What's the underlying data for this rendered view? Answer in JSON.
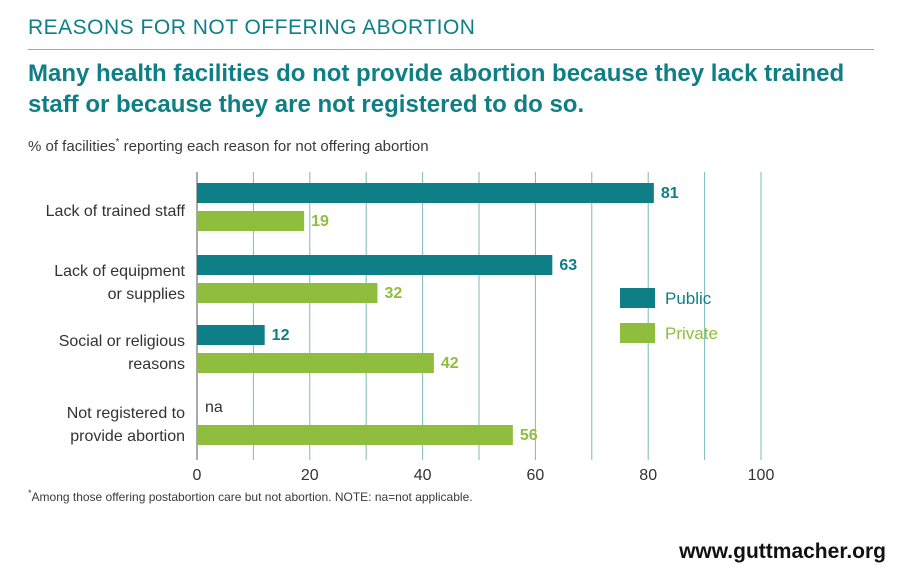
{
  "header": {
    "section_label": "REASONS FOR NOT OFFERING ABORTION",
    "headline": "Many health facilities do not provide abortion because they lack trained staff or because they are not registered to do so.",
    "subtitle_pre": "% of facilities",
    "subtitle_mark": "*",
    "subtitle_post": " reporting each reason for not offering abortion"
  },
  "footer": {
    "footnote_mark": "*",
    "footnote": "Among those offering postabortion care but not abortion. NOTE: na=not applicable.",
    "source": "www.guttmacher.org"
  },
  "colors": {
    "public": "#0e7f86",
    "private": "#8fbe3e",
    "title": "#0e7f86",
    "grid": "#0e7f86"
  },
  "chart_data": {
    "type": "bar",
    "orientation": "horizontal",
    "title": "Many health facilities do not provide abortion because they lack trained staff or because they are not registered to do so.",
    "ylabel": "% of facilities* reporting each reason for not offering abortion",
    "xlim": [
      0,
      100
    ],
    "xticks": [
      0,
      20,
      40,
      60,
      80,
      100
    ],
    "grid": true,
    "legend_position": "right",
    "categories": [
      [
        "Lack of trained staff"
      ],
      [
        "Lack of equipment",
        "or supplies"
      ],
      [
        "Social or religious",
        "reasons"
      ],
      [
        "Not registered to",
        "provide abortion"
      ]
    ],
    "series": [
      {
        "name": "Public",
        "values": [
          81,
          63,
          12,
          null
        ],
        "labels": [
          "81",
          "63",
          "12",
          "na"
        ]
      },
      {
        "name": "Private",
        "values": [
          19,
          32,
          42,
          56
        ],
        "labels": [
          "19",
          "32",
          "42",
          "56"
        ]
      }
    ]
  }
}
